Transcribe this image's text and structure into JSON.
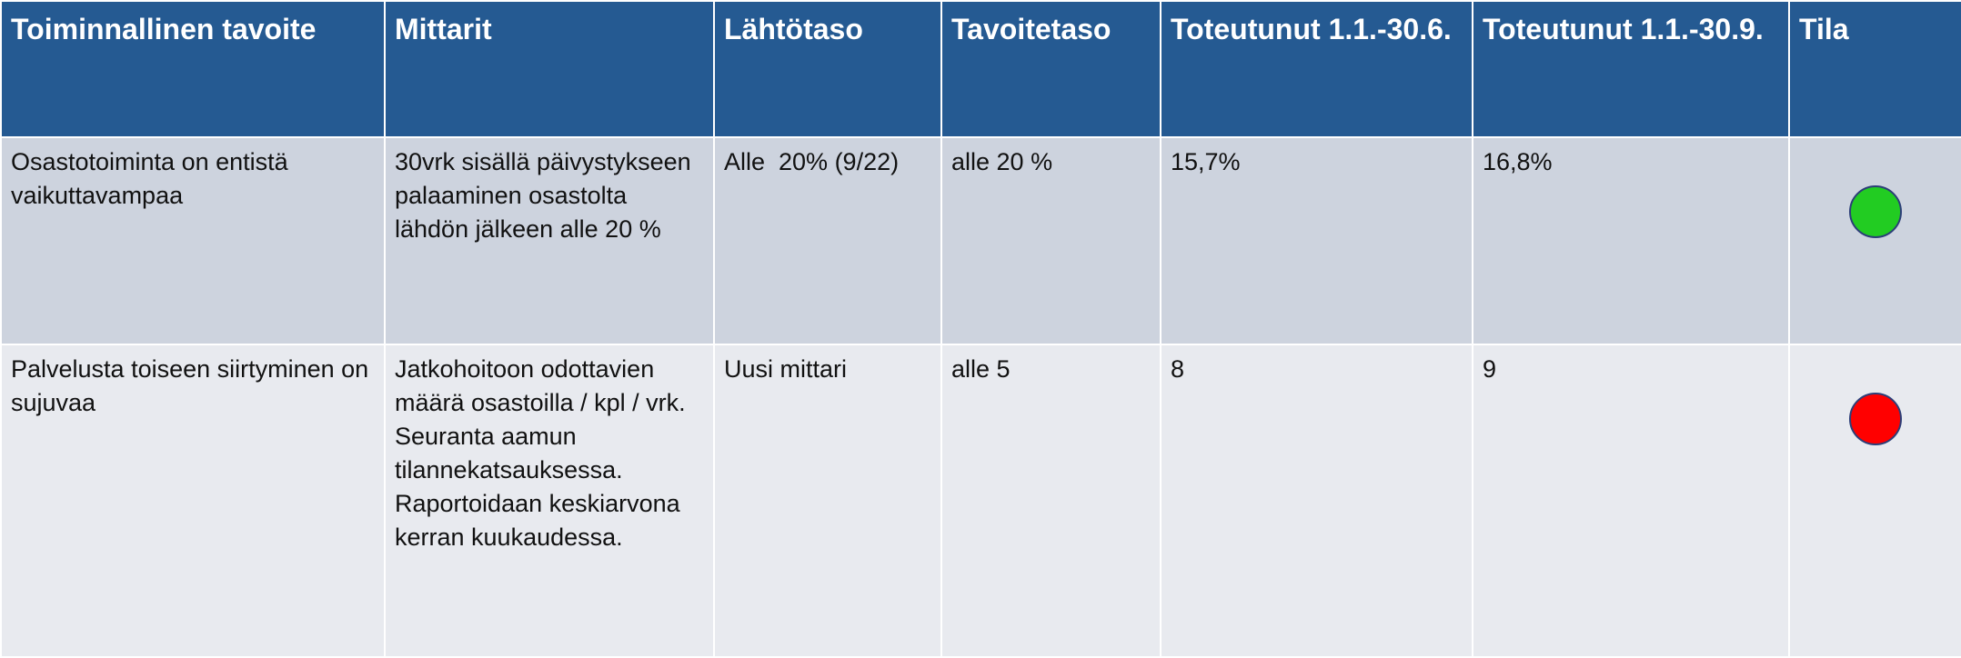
{
  "table": {
    "header": [
      "Toiminnallinen tavoite",
      "Mittarit",
      "Lähtötaso",
      "Tavoitetaso",
      "Toteutunut 1.1.-30.6.",
      "Toteutunut 1.1.-30.9.",
      "Tila"
    ],
    "rows": [
      {
        "cells": [
          "Osastotoiminta on entistä vaikuttavampaa",
          "30vrk sisällä päivystykseen palaaminen osastolta lähdön jälkeen alle 20 %",
          "Alle  20% (9/22)",
          "alle 20 %",
          "15,7%",
          "16,8%"
        ],
        "status_color": "#22cc22"
      },
      {
        "cells": [
          "Palvelusta toiseen siirtyminen on sujuvaa",
          "Jatkohoitoon odottavien määrä osastoilla / kpl / vrk.\nSeuranta aamun tilannekatsauksessa.\nRaportoidaan keskiarvona kerran kuukaudessa.",
          "Uusi mittari",
          "alle 5",
          "8",
          "9"
        ],
        "status_color": "#ff0000"
      }
    ]
  }
}
